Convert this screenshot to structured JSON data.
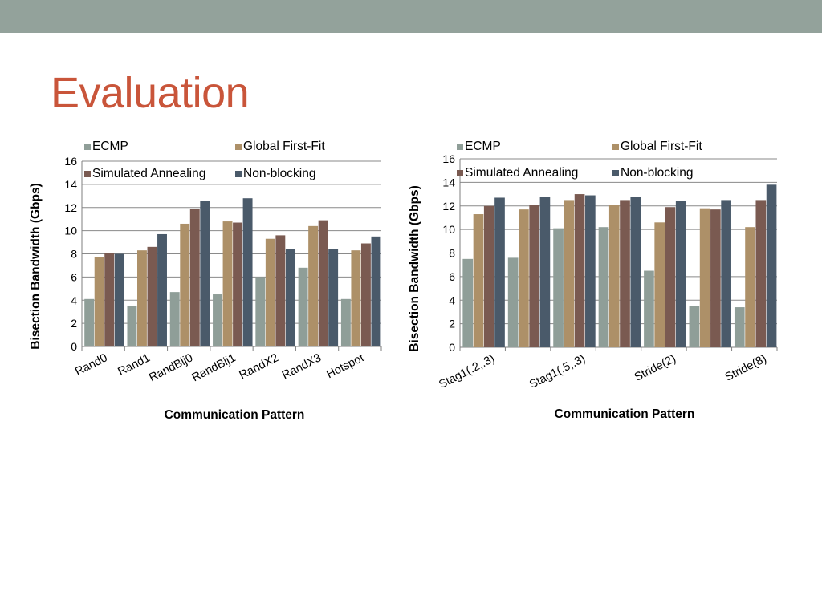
{
  "slide": {
    "title": "Evaluation"
  },
  "colors": {
    "band": "#93a29b",
    "title": "#c9553a",
    "series": [
      "#8f9e98",
      "#ad9068",
      "#7a5a51",
      "#4a5a6a"
    ]
  },
  "chart_data": [
    {
      "type": "bar",
      "title": "",
      "xlabel": "Communication Pattern",
      "ylabel": "Bisection Bandwidth (Gbps)",
      "ylim": [
        0,
        16
      ],
      "yticks": [
        "0",
        "2",
        "4",
        "6",
        "8",
        "10",
        "12",
        "14",
        "16"
      ],
      "grid": true,
      "legend": "top",
      "categories": [
        "Rand0",
        "Rand1",
        "RandBij0",
        "RandBij1",
        "RandX2",
        "RandX3",
        "Hotspot"
      ],
      "series": [
        {
          "name": "ECMP",
          "values": [
            4.1,
            3.5,
            4.7,
            4.5,
            6.0,
            6.8,
            4.1
          ]
        },
        {
          "name": "Global First-Fit",
          "values": [
            7.7,
            8.3,
            10.6,
            10.8,
            9.3,
            10.4,
            8.3
          ]
        },
        {
          "name": "Simulated Annealing",
          "values": [
            8.1,
            8.6,
            11.9,
            10.7,
            9.6,
            10.9,
            8.9
          ]
        },
        {
          "name": "Non-blocking",
          "values": [
            8.0,
            9.7,
            12.6,
            12.8,
            8.4,
            8.4,
            9.5
          ]
        }
      ]
    },
    {
      "type": "bar",
      "title": "",
      "xlabel": "Communication Pattern",
      "ylabel": "Bisection Bandwidth (Gbps)",
      "ylim": [
        0,
        16
      ],
      "yticks": [
        "0",
        "2",
        "4",
        "6",
        "8",
        "10",
        "12",
        "14",
        "16"
      ],
      "grid": true,
      "legend": "top",
      "categories": [
        "Stag1(.2,.3)",
        "",
        "Stag1(.5,.3)",
        "",
        "Stride(2)",
        "",
        "Stride(8)"
      ],
      "series": [
        {
          "name": "ECMP",
          "values": [
            7.5,
            7.6,
            10.1,
            10.2,
            6.5,
            3.5,
            3.4
          ]
        },
        {
          "name": "Global First-Fit",
          "values": [
            11.3,
            11.7,
            12.5,
            12.1,
            10.6,
            11.8,
            10.2
          ]
        },
        {
          "name": "Simulated Annealing",
          "values": [
            12.0,
            12.1,
            13.0,
            12.5,
            11.9,
            11.7,
            12.5
          ]
        },
        {
          "name": "Non-blocking",
          "values": [
            12.7,
            12.8,
            12.9,
            12.8,
            12.4,
            12.5,
            13.8
          ]
        }
      ]
    }
  ]
}
